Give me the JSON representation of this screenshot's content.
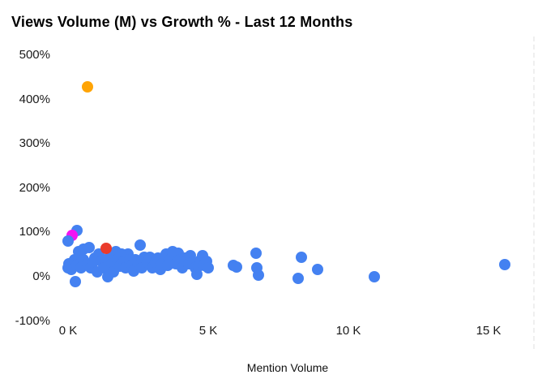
{
  "chart_data": {
    "type": "scatter",
    "title": "Views Volume (M) vs Growth % - Last 12 Months",
    "xlabel": "Mention Volume",
    "ylabel": "",
    "xlim": [
      0,
      16600
    ],
    "ylim": [
      -100,
      500
    ],
    "grid": false,
    "legend": "none",
    "x_ticks": [
      {
        "value": 0,
        "label": "0 K"
      },
      {
        "value": 5000,
        "label": "5 K"
      },
      {
        "value": 10000,
        "label": "10 K"
      },
      {
        "value": 15000,
        "label": "15 K"
      }
    ],
    "y_ticks": [
      {
        "value": 500,
        "label": "500%"
      },
      {
        "value": 400,
        "label": "400%"
      },
      {
        "value": 300,
        "label": "300%"
      },
      {
        "value": 200,
        "label": "200%"
      },
      {
        "value": 100,
        "label": "100%"
      },
      {
        "value": 0,
        "label": "0%"
      },
      {
        "value": -100,
        "label": "-100%"
      }
    ],
    "colors": {
      "default": "#4481F1",
      "orange": "#FFA405",
      "magenta": "#F313F3",
      "red": "#EA3B2C"
    },
    "points": [
      [
        320,
        104
      ],
      [
        140,
        93,
        "magenta"
      ],
      [
        10,
        80
      ],
      [
        30,
        29
      ],
      [
        10,
        20
      ],
      [
        120,
        16
      ],
      [
        230,
        38
      ],
      [
        380,
        57
      ],
      [
        400,
        51
      ],
      [
        320,
        26
      ],
      [
        460,
        20
      ],
      [
        550,
        62
      ],
      [
        550,
        38
      ],
      [
        690,
        29
      ],
      [
        750,
        66
      ],
      [
        810,
        20
      ],
      [
        900,
        33
      ],
      [
        950,
        42
      ],
      [
        1040,
        11
      ],
      [
        1100,
        51
      ],
      [
        1190,
        35
      ],
      [
        1270,
        20
      ],
      [
        1420,
        0
      ],
      [
        1470,
        44
      ],
      [
        1560,
        29
      ],
      [
        1620,
        11
      ],
      [
        1710,
        57
      ],
      [
        1760,
        38
      ],
      [
        1850,
        24
      ],
      [
        1910,
        51
      ],
      [
        1990,
        35
      ],
      [
        2050,
        20
      ],
      [
        2140,
        51
      ],
      [
        2200,
        38
      ],
      [
        2280,
        26
      ],
      [
        2340,
        13
      ],
      [
        2400,
        38
      ],
      [
        2490,
        35
      ],
      [
        2570,
        71
      ],
      [
        2630,
        33
      ],
      [
        2630,
        20
      ],
      [
        2720,
        44
      ],
      [
        2830,
        33
      ],
      [
        2920,
        44
      ],
      [
        3010,
        20
      ],
      [
        3120,
        33
      ],
      [
        3210,
        42
      ],
      [
        3290,
        16
      ],
      [
        3350,
        29
      ],
      [
        3500,
        51
      ],
      [
        3550,
        26
      ],
      [
        3640,
        38
      ],
      [
        3730,
        57
      ],
      [
        3840,
        29
      ],
      [
        3930,
        53
      ],
      [
        3990,
        38
      ],
      [
        4080,
        20
      ],
      [
        4160,
        42
      ],
      [
        4220,
        35
      ],
      [
        4310,
        29
      ],
      [
        4360,
        48
      ],
      [
        4450,
        33
      ],
      [
        4540,
        20
      ],
      [
        4600,
        5
      ],
      [
        4650,
        24
      ],
      [
        4740,
        38
      ],
      [
        4800,
        48
      ],
      [
        4860,
        26
      ],
      [
        4940,
        35
      ],
      [
        5000,
        20
      ],
      [
        260,
        -11
      ],
      [
        1360,
        64,
        "red"
      ],
      [
        690,
        429,
        "orange"
      ],
      [
        5900,
        26
      ],
      [
        6010,
        22
      ],
      [
        6710,
        53
      ],
      [
        6730,
        20
      ],
      [
        6790,
        4
      ],
      [
        8210,
        -4
      ],
      [
        8320,
        44
      ],
      [
        8900,
        16
      ],
      [
        10920,
        0
      ],
      [
        15580,
        27
      ]
    ]
  }
}
